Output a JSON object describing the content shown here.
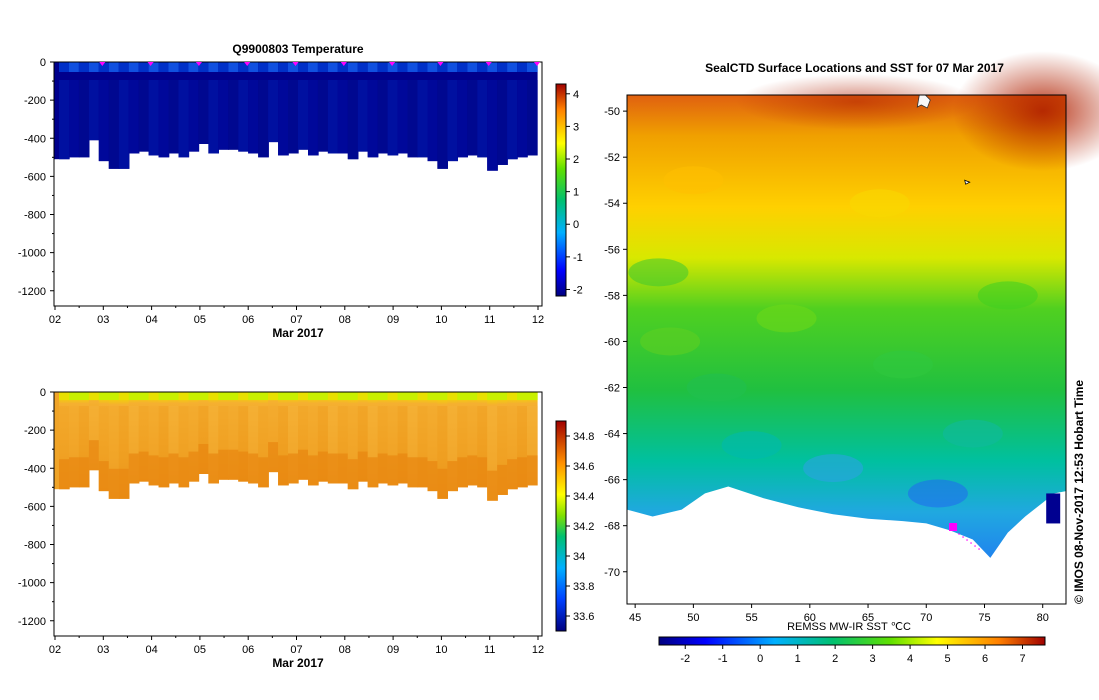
{
  "chart_data": [
    {
      "type": "heatmap",
      "title": "Q9900803  Temperature",
      "xlabel": "Mar 2017",
      "ylabel": "",
      "x_ticks": [
        "02",
        "03",
        "04",
        "05",
        "06",
        "07",
        "08",
        "09",
        "10",
        "11",
        "12"
      ],
      "y_ticks": [
        0,
        -200,
        -400,
        -600,
        -800,
        -1000,
        -1200
      ],
      "ylim": [
        -1280,
        0
      ],
      "colorbar": {
        "ticks": [
          4,
          3,
          2,
          1,
          0,
          -1,
          -2
        ],
        "range": [
          -2.2,
          4.3
        ]
      },
      "profile_bottom_depths": [
        -510,
        -500,
        -500,
        -410,
        -520,
        -560,
        -560,
        -480,
        -470,
        -490,
        -500,
        -480,
        -500,
        -470,
        -430,
        -480,
        -460,
        -460,
        -470,
        -480,
        -500,
        -420,
        -490,
        -480,
        -460,
        -490,
        -470,
        -480,
        -480,
        -510,
        -470,
        -500,
        -480,
        -490,
        -480,
        -500,
        -500,
        -520,
        -560,
        -520,
        -500,
        -490,
        -500,
        -570,
        -540,
        -510,
        -500,
        -490
      ],
      "profile_markers": [
        "03",
        "04",
        "05",
        "06",
        "07",
        "08",
        "09",
        "10",
        "11",
        "12"
      ]
    },
    {
      "type": "heatmap",
      "title": "",
      "xlabel": "Mar 2017",
      "ylabel": "",
      "x_ticks": [
        "02",
        "03",
        "04",
        "05",
        "06",
        "07",
        "08",
        "09",
        "10",
        "11",
        "12"
      ],
      "y_ticks": [
        0,
        -200,
        -400,
        -600,
        -800,
        -1000,
        -1200
      ],
      "ylim": [
        -1280,
        0
      ],
      "colorbar": {
        "ticks": [
          "34.8",
          "34.6",
          "34.4",
          "34.2",
          "34",
          "33.8",
          "33.6"
        ],
        "range": [
          33.5,
          34.9
        ]
      },
      "profile_bottom_depths": [
        -510,
        -500,
        -500,
        -410,
        -520,
        -560,
        -560,
        -480,
        -470,
        -490,
        -500,
        -480,
        -500,
        -470,
        -430,
        -480,
        -460,
        -460,
        -470,
        -480,
        -500,
        -420,
        -490,
        -480,
        -460,
        -490,
        -470,
        -480,
        -480,
        -510,
        -470,
        -500,
        -480,
        -490,
        -480,
        -500,
        -500,
        -520,
        -560,
        -520,
        -500,
        -490,
        -500,
        -570,
        -540,
        -510,
        -500,
        -490
      ]
    },
    {
      "type": "heatmap",
      "title": "SealCTD Surface Locations and SST for 07 Mar 2017",
      "xlabel": "REMSS MW-IR SST ℃C",
      "ylabel": "",
      "x_ticks": [
        "45",
        "50",
        "55",
        "60",
        "65",
        "70",
        "75",
        "80"
      ],
      "y_ticks": [
        "-50",
        "-52",
        "-54",
        "-56",
        "-58",
        "-60",
        "-62",
        "-64",
        "-66",
        "-68",
        "-70"
      ],
      "xlim": [
        44.3,
        82
      ],
      "ylim": [
        -71.4,
        -49.3
      ],
      "colorbar": {
        "ticks": [
          "-2",
          "-1",
          "0",
          "1",
          "2",
          "3",
          "4",
          "5",
          "6",
          "7"
        ],
        "range": [
          -2.7,
          7.6
        ]
      },
      "side_label": "©  IMOS 08-Nov-2017 12:53 Hobart Time",
      "seal_track_position": {
        "lon": 72.3,
        "lat": -68.1
      }
    }
  ]
}
